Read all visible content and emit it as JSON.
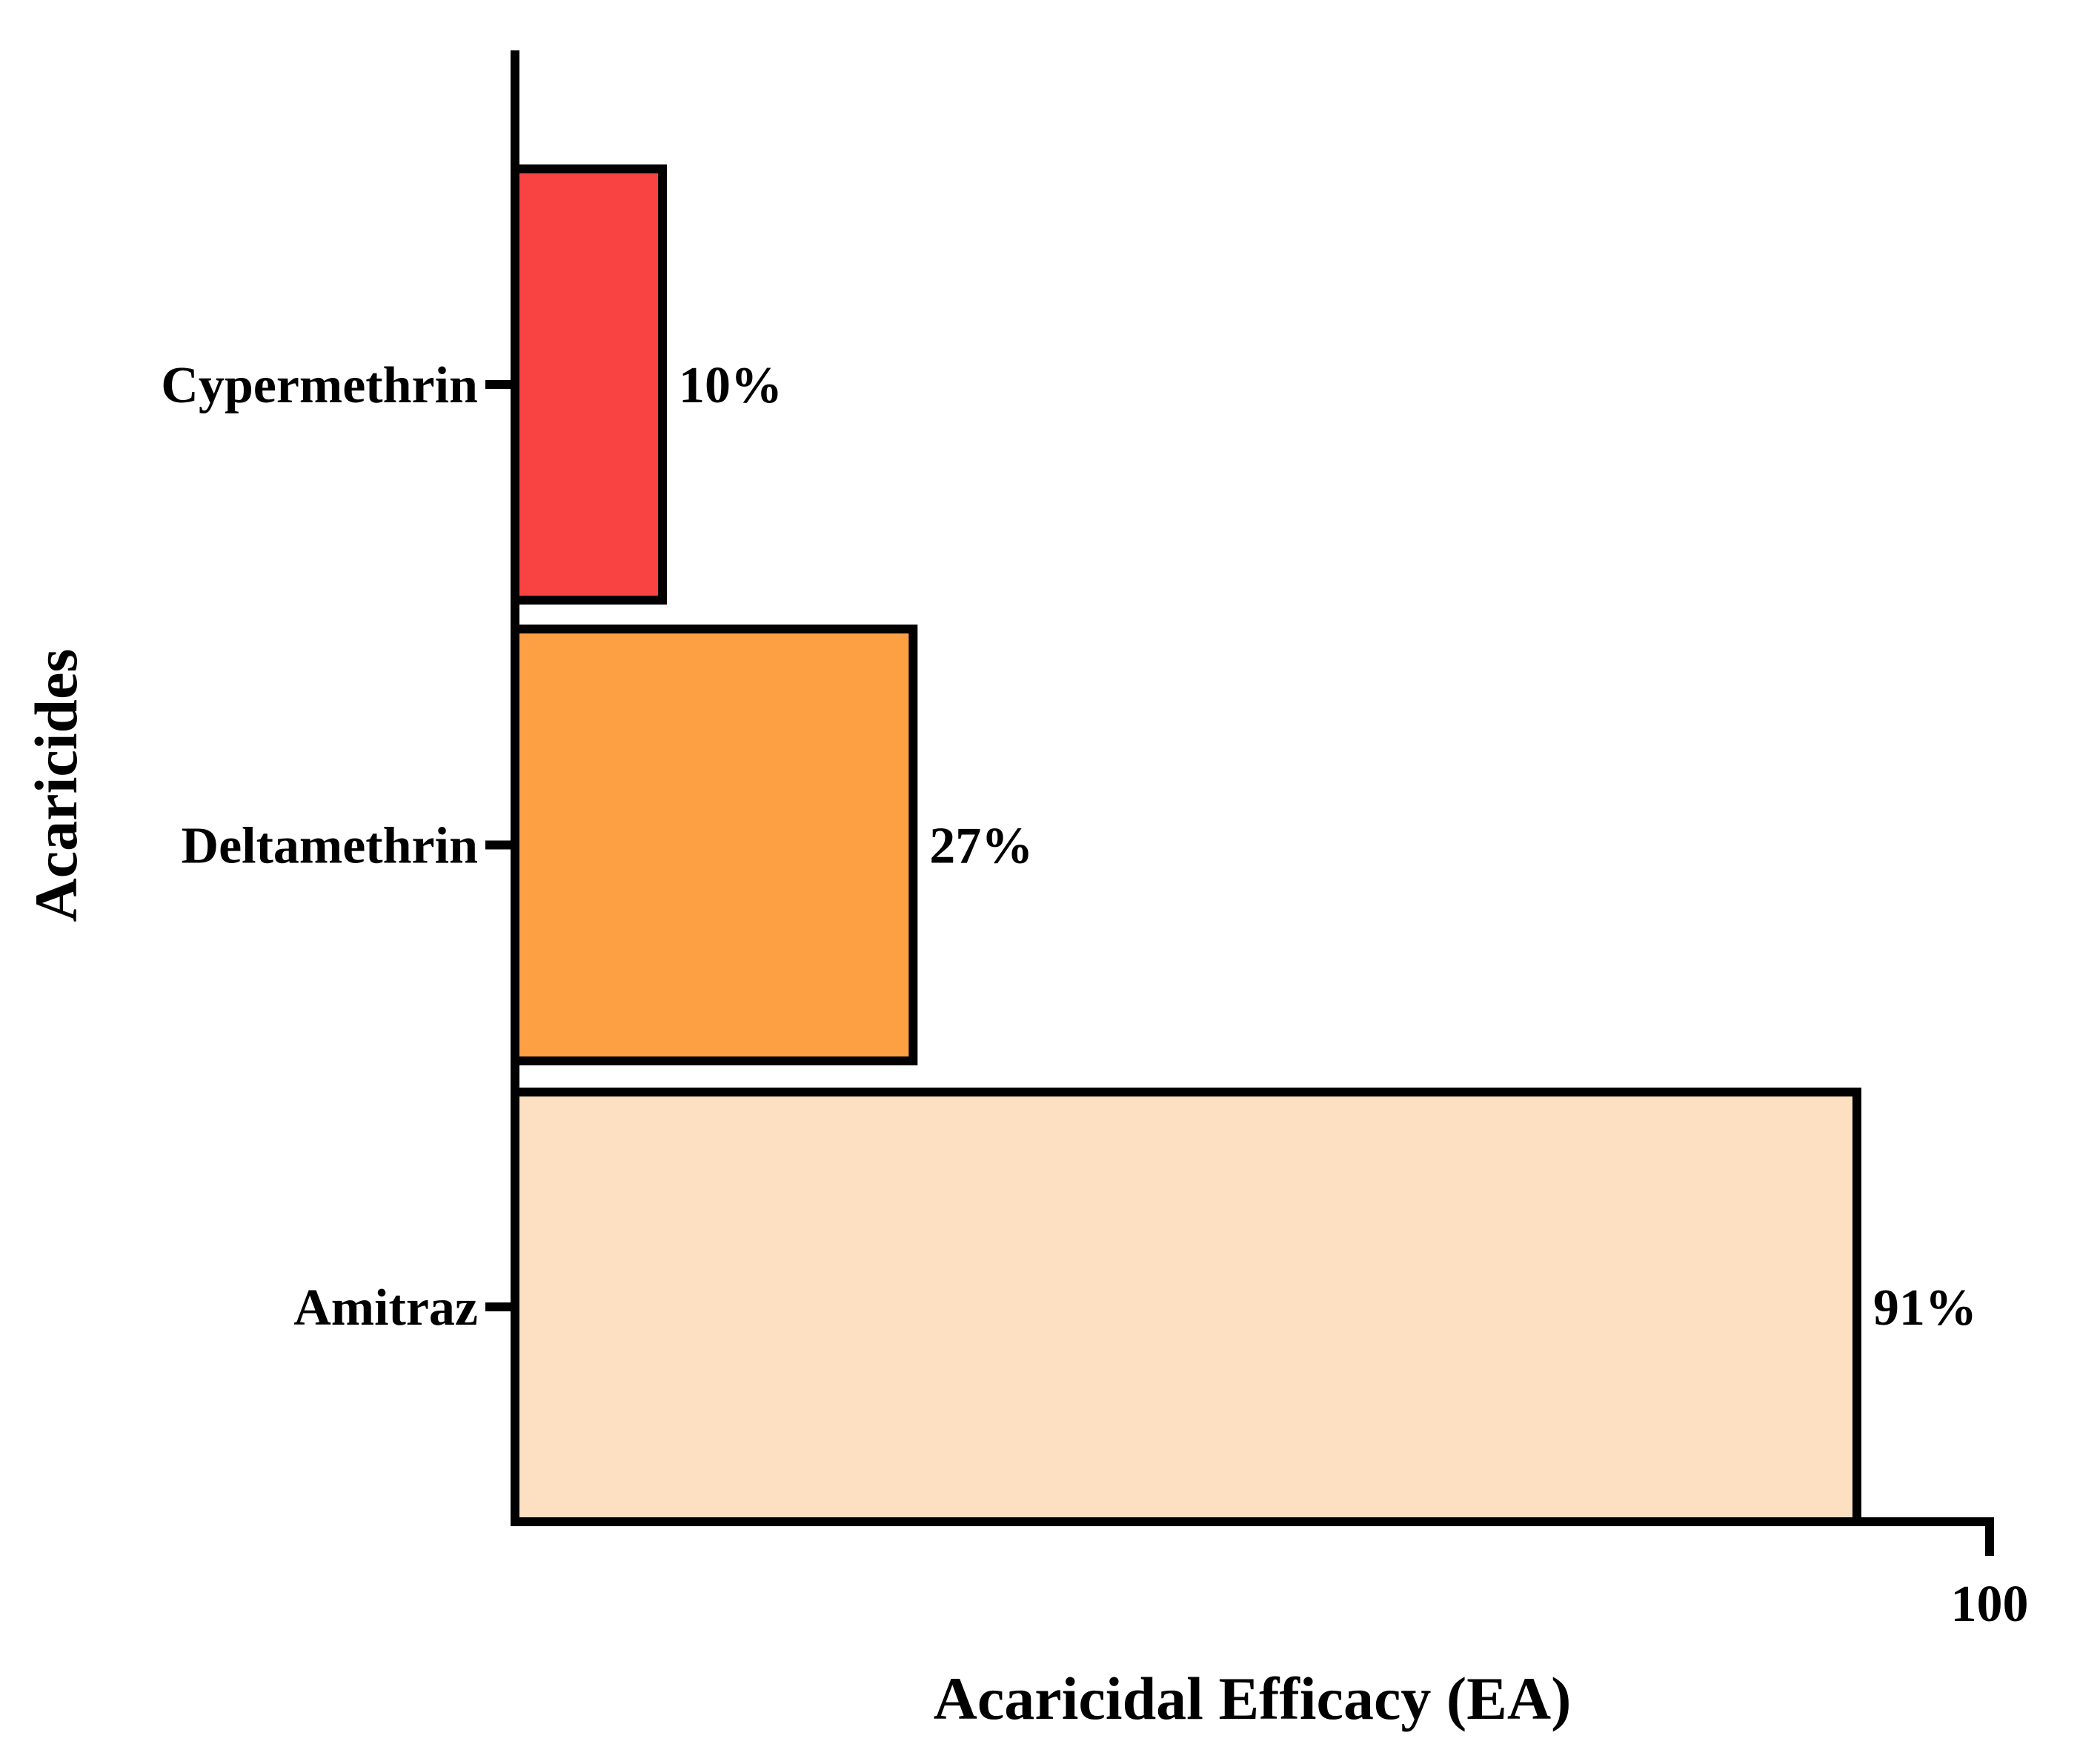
{
  "chart_data": {
    "type": "bar",
    "orientation": "horizontal",
    "categories": [
      "Cypermethrin",
      "Deltamethrin",
      "Amitraz"
    ],
    "values": [
      10,
      27,
      91
    ],
    "value_labels": [
      "10%",
      "27%",
      "91%"
    ],
    "colors": [
      "#F94343",
      "#FDA043",
      "#FDE0C2"
    ],
    "xlabel": "Acaricidal Efficacy (EA)",
    "ylabel": "Acaricides",
    "xlim": [
      0,
      100
    ],
    "xticks": [
      "100"
    ],
    "grid": false,
    "legend": "none"
  }
}
